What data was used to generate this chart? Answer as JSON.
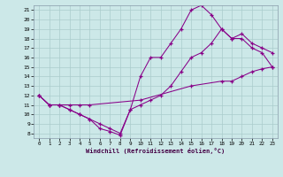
{
  "xlabel": "Windchill (Refroidissement éolien,°C)",
  "bg_color": "#cce8e8",
  "line_color": "#880088",
  "grid_color": "#aacccc",
  "xlim": [
    -0.5,
    23.5
  ],
  "ylim": [
    7.5,
    21.5
  ],
  "xticks": [
    0,
    1,
    2,
    3,
    4,
    5,
    6,
    7,
    8,
    9,
    10,
    11,
    12,
    13,
    14,
    15,
    16,
    17,
    18,
    19,
    20,
    21,
    22,
    23
  ],
  "yticks": [
    8,
    9,
    10,
    11,
    12,
    13,
    14,
    15,
    16,
    17,
    18,
    19,
    20,
    21
  ],
  "line1_x": [
    0,
    1,
    2,
    3,
    4,
    5,
    6,
    7,
    8,
    9,
    10,
    11,
    12,
    13,
    14,
    15,
    16,
    17,
    18,
    19,
    20,
    21,
    22,
    23
  ],
  "line1_y": [
    12,
    11,
    11,
    10.5,
    10,
    9.5,
    8.5,
    8.2,
    7.8,
    10.5,
    14,
    16,
    16,
    17.5,
    19,
    21,
    21.5,
    20.5,
    19,
    18,
    18,
    17,
    16.5,
    15
  ],
  "line2_x": [
    0,
    1,
    2,
    3,
    4,
    5,
    6,
    7,
    8,
    9,
    10,
    11,
    12,
    13,
    14,
    15,
    16,
    17,
    18,
    19,
    20,
    21,
    22,
    23
  ],
  "line2_y": [
    12,
    11,
    11,
    10.5,
    10,
    9.5,
    9,
    8.5,
    8,
    10.5,
    11,
    11.5,
    12,
    13,
    14.5,
    16,
    16.5,
    17.5,
    19,
    18,
    18.5,
    17.5,
    17,
    16.5
  ],
  "line3_x": [
    0,
    1,
    2,
    3,
    4,
    5,
    10,
    15,
    18,
    19,
    20,
    21,
    22,
    23
  ],
  "line3_y": [
    12,
    11,
    11,
    11,
    11,
    11,
    11.5,
    13,
    13.5,
    13.5,
    14,
    14.5,
    14.8,
    15
  ]
}
